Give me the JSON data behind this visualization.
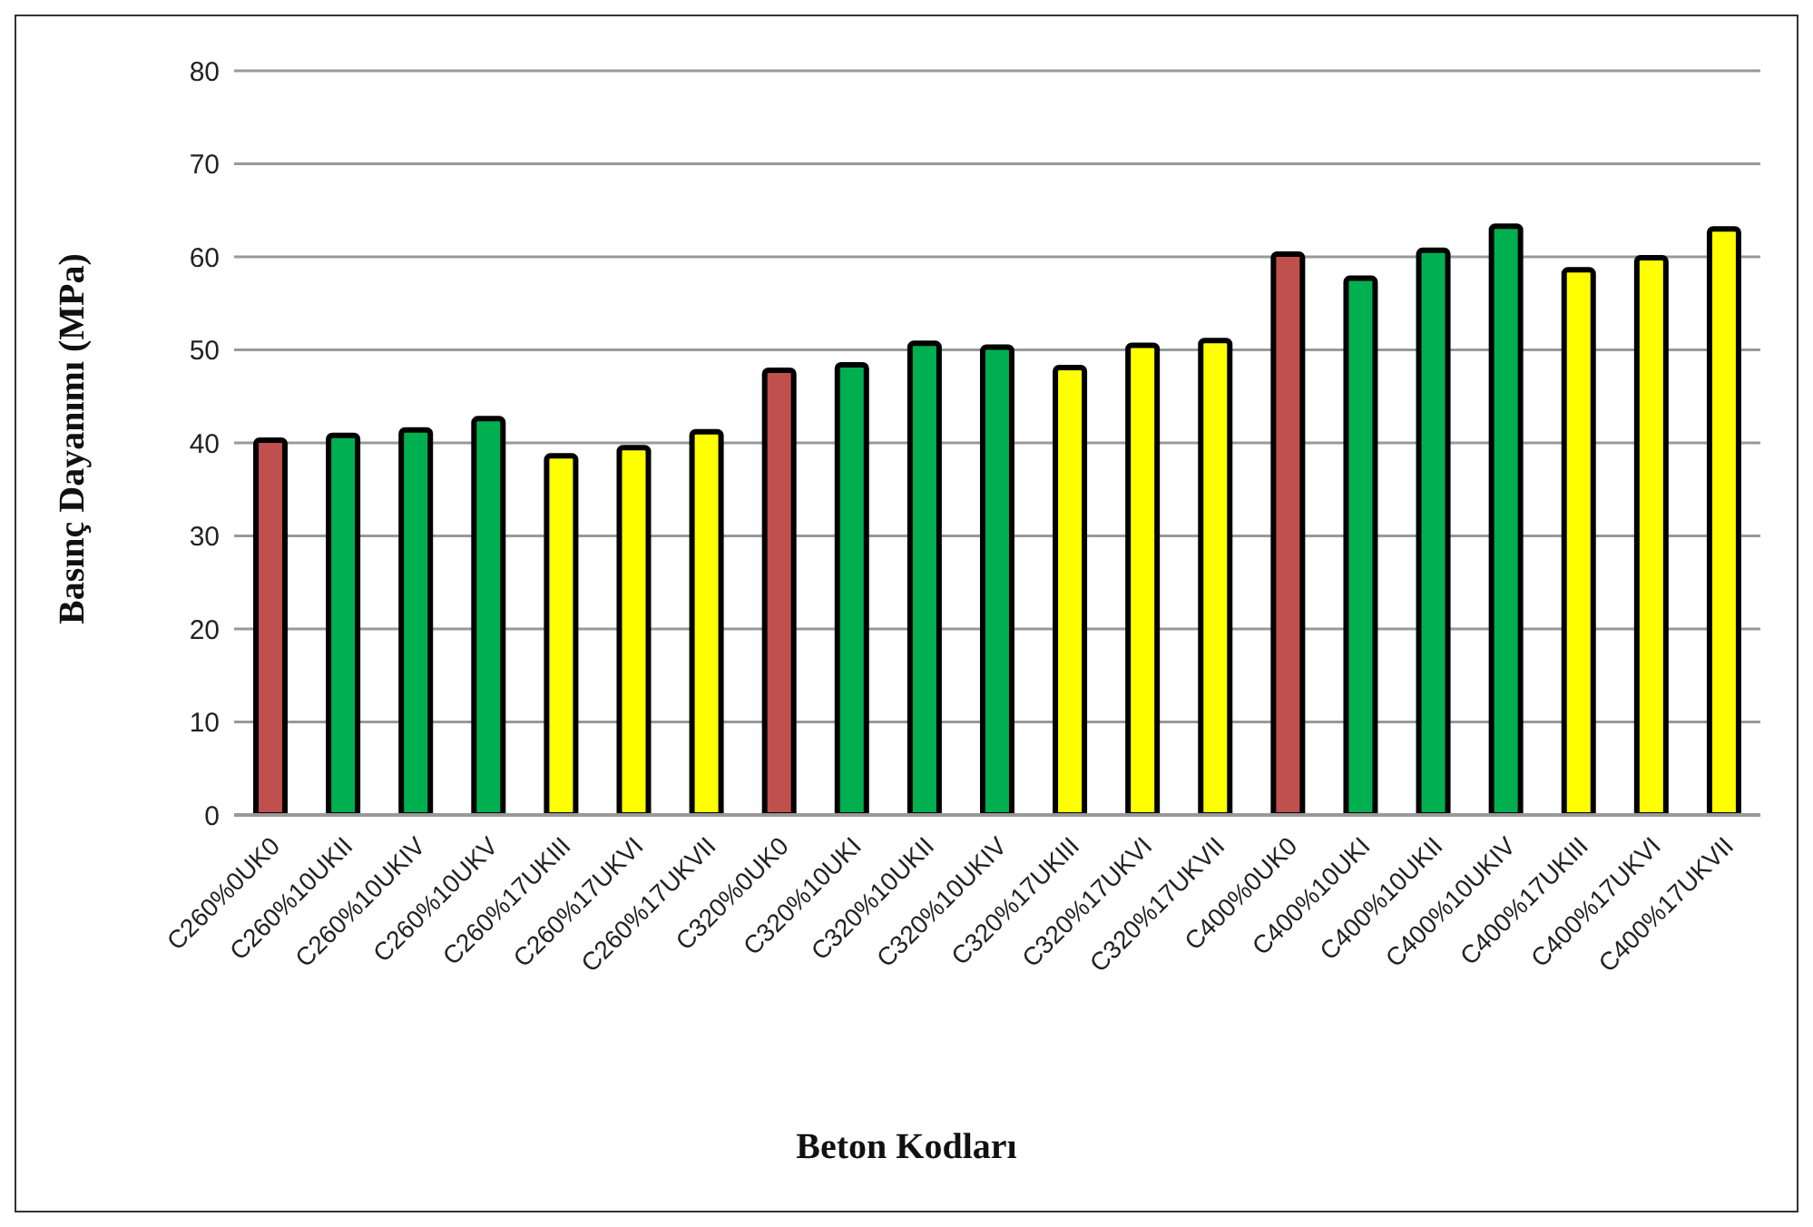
{
  "chart_data": {
    "type": "bar",
    "xlabel": "Beton Kodları",
    "ylabel": "Basınç Dayanımı (MPa)",
    "categories": [
      "C260%0UK0",
      "C260%10UKII",
      "C260%10UKIV",
      "C260%10UKV",
      "C260%17UKIII",
      "C260%17UKVI",
      "C260%17UKVII",
      "C320%0UK0",
      "C320%10UKI",
      "C320%10UKII",
      "C320%10UKIV",
      "C320%17UKIII",
      "C320%17UKVI",
      "C320%17UKVII",
      "C400%0UK0",
      "C400%10UKI",
      "C400%10UKII",
      "C400%10UKIV",
      "C400%17UKIII",
      "C400%17UKVI",
      "C400%17UKVII"
    ],
    "values": [
      40.3,
      40.8,
      41.4,
      42.6,
      38.6,
      39.5,
      41.2,
      47.8,
      48.4,
      50.7,
      50.3,
      48.1,
      50.5,
      51.0,
      60.3,
      57.7,
      60.7,
      63.3,
      58.6,
      59.9,
      63.0
    ],
    "colors": [
      "#c0504d",
      "#00b050",
      "#00b050",
      "#00b050",
      "#ffff00",
      "#ffff00",
      "#ffff00",
      "#c0504d",
      "#00b050",
      "#00b050",
      "#00b050",
      "#ffff00",
      "#ffff00",
      "#ffff00",
      "#c0504d",
      "#00b050",
      "#00b050",
      "#00b050",
      "#ffff00",
      "#ffff00",
      "#ffff00"
    ],
    "ylim": [
      0,
      80
    ],
    "yticks": [
      0,
      10,
      20,
      30,
      40,
      50,
      60,
      70,
      80
    ],
    "grid": "y",
    "legend": false
  }
}
